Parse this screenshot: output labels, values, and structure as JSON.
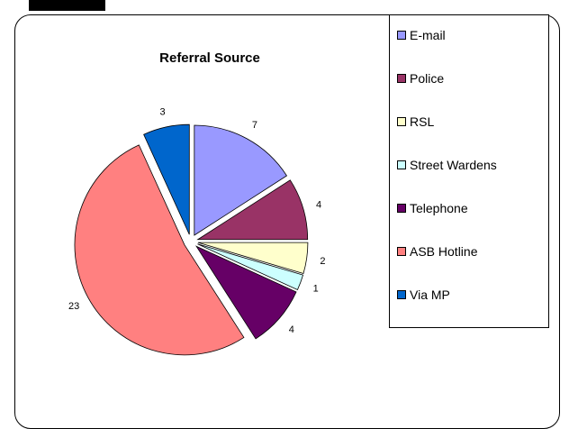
{
  "chart_data": {
    "type": "pie",
    "title": "Referral Source",
    "categories": [
      "E-mail",
      "Police",
      "RSL",
      "Street Wardens",
      "Telephone",
      "ASB Hotline",
      "Via MP"
    ],
    "values": [
      7,
      4,
      2,
      1,
      4,
      23,
      3
    ],
    "colors": [
      "#9999ff",
      "#993366",
      "#ffffcc",
      "#ccffff",
      "#660066",
      "#ff8080",
      "#0066cc"
    ],
    "legend_position": "right",
    "exploded": true
  }
}
